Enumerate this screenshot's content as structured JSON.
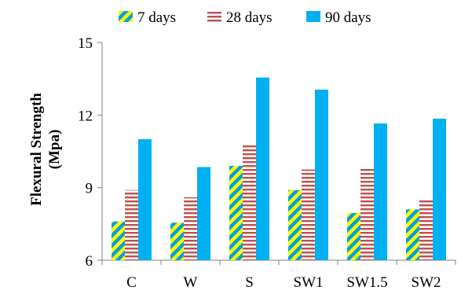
{
  "chart_data": {
    "type": "bar",
    "title": "",
    "xlabel": "",
    "ylabel": [
      "Flexural Strength",
      "(Mpa)"
    ],
    "categories": [
      "C",
      "W",
      "S",
      "SW1",
      "SW1.5",
      "SW2"
    ],
    "series": [
      {
        "name": "7 days",
        "values": [
          7.6,
          7.55,
          9.9,
          8.9,
          7.95,
          8.1
        ],
        "color": "#00a0e0",
        "pattern": "diagonal-stripes-yellow-blue"
      },
      {
        "name": "28 days",
        "values": [
          8.9,
          8.6,
          10.8,
          9.75,
          9.85,
          8.5
        ],
        "color": "#c0504d",
        "pattern": "horizontal-stripes-red-white"
      },
      {
        "name": "90 days",
        "values": [
          11.0,
          9.85,
          13.55,
          13.05,
          11.65,
          11.85
        ],
        "color": "#00b0f0",
        "pattern": "solid"
      }
    ],
    "ylim": [
      6,
      15
    ],
    "yticks": [
      6,
      9,
      12,
      15
    ],
    "grid": false,
    "legend_position": "top"
  }
}
